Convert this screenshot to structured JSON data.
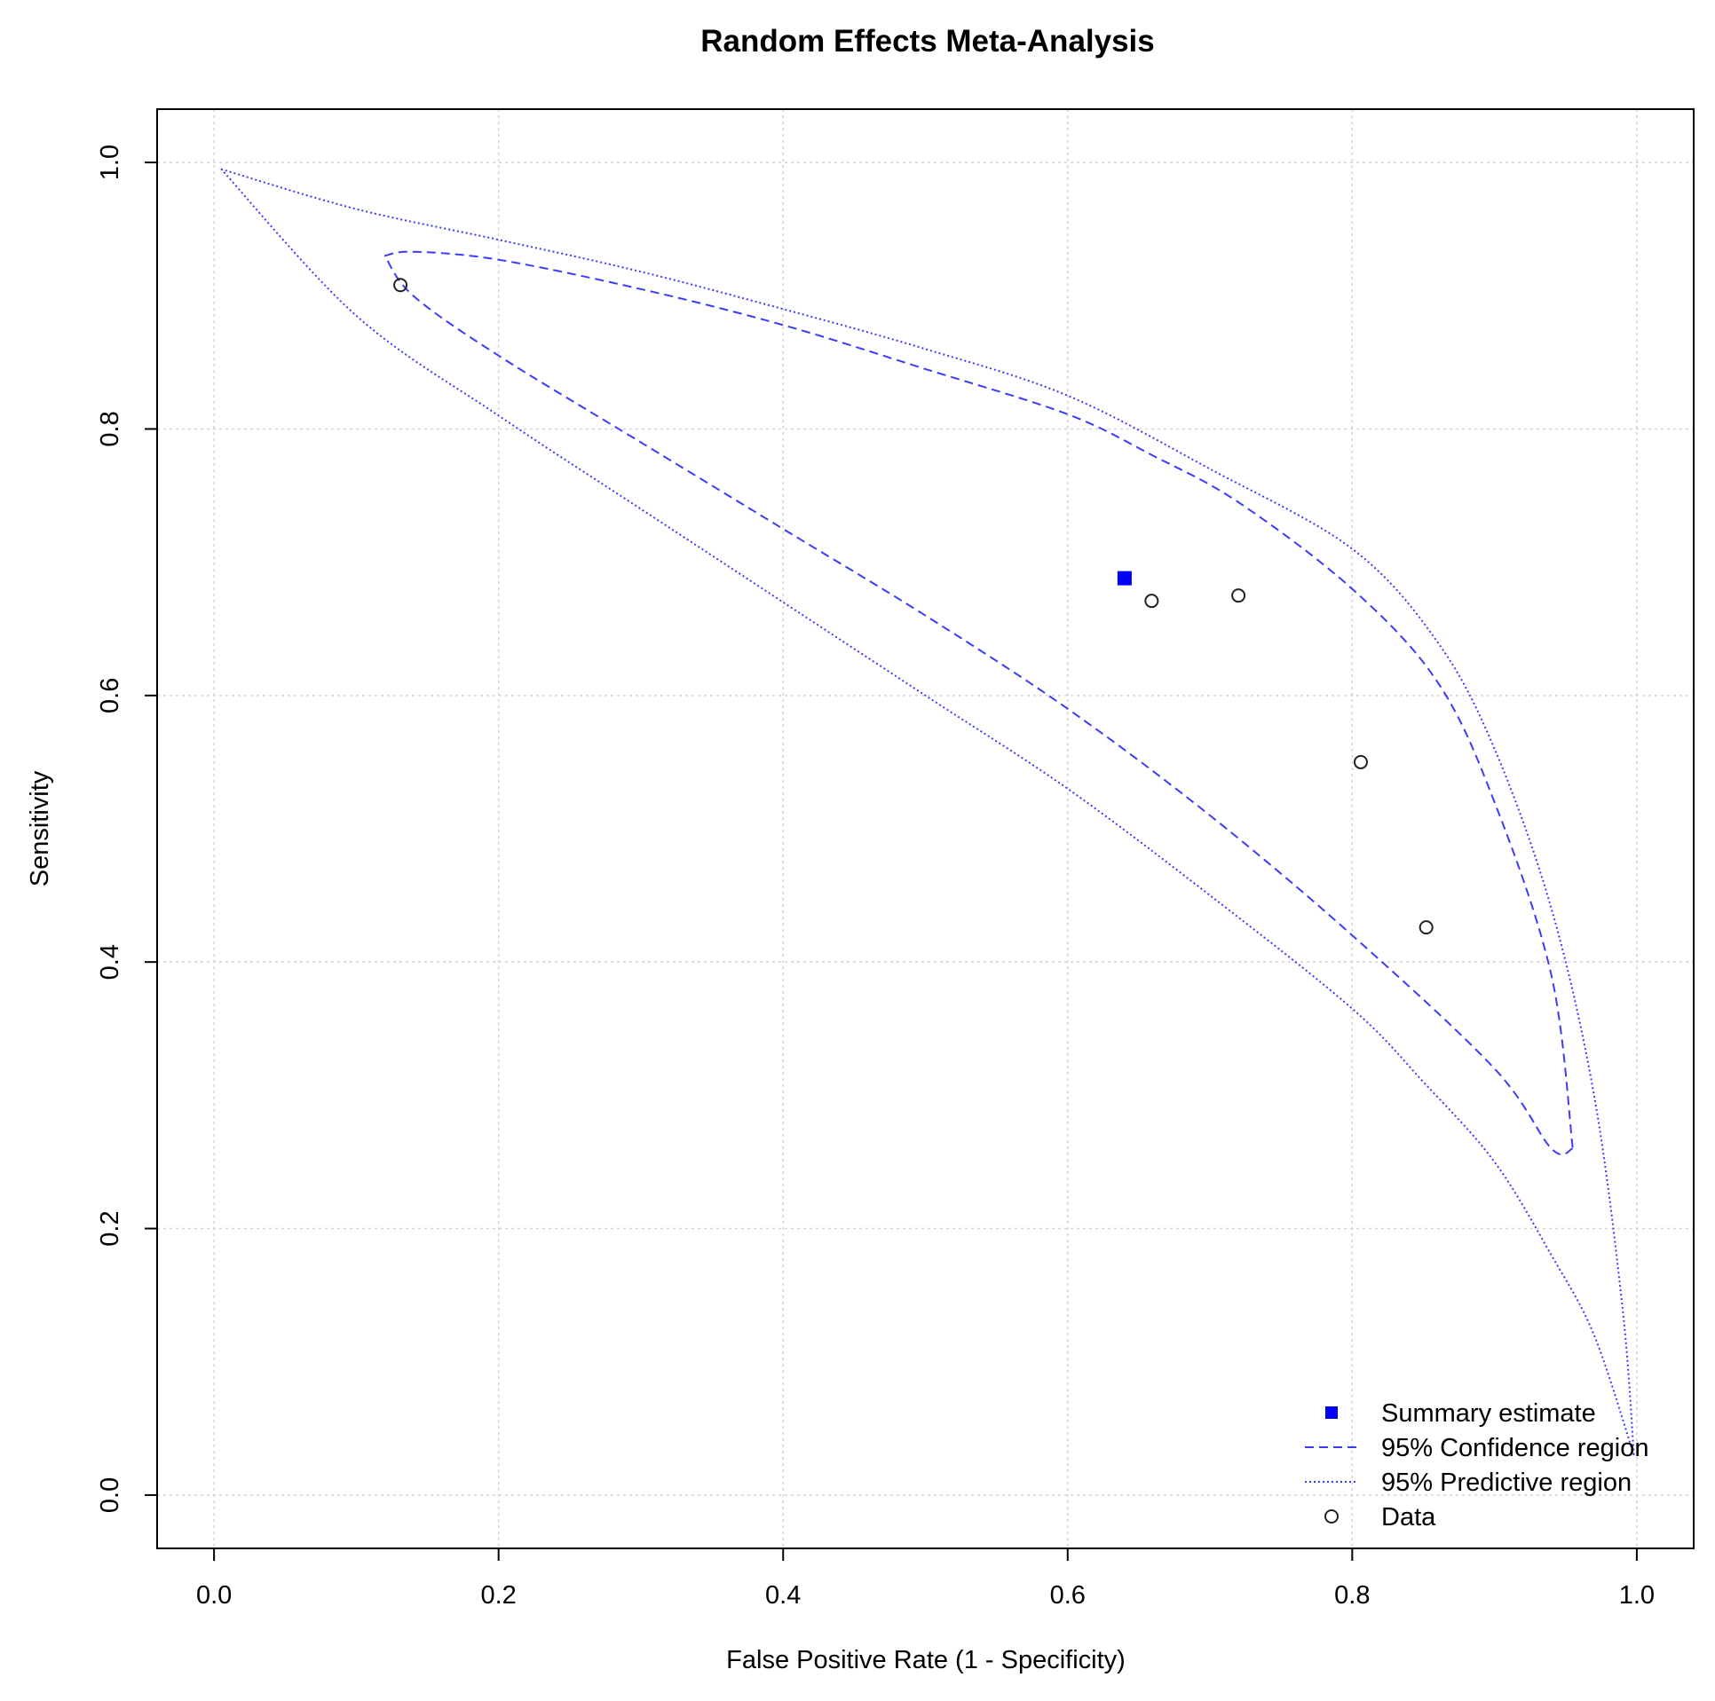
{
  "chart_data": {
    "type": "scatter",
    "title": "Random Effects Meta-Analysis",
    "xlabel": "False Positive Rate (1 - Specificity)",
    "ylabel": "Sensitivity",
    "xlim": [
      -0.04,
      1.04
    ],
    "ylim": [
      -0.04,
      1.04
    ],
    "xticks": [
      "0.0",
      "0.2",
      "0.4",
      "0.6",
      "0.8",
      "1.0"
    ],
    "yticks": [
      "0.0",
      "0.2",
      "0.4",
      "0.6",
      "0.8",
      "1.0"
    ],
    "grid": true,
    "colors": {
      "summary": "#0000ff",
      "regions": "#3b3bff",
      "data": "#222222",
      "grid": "#d3d3d3"
    },
    "summary_estimate": {
      "x": 0.64,
      "y": 0.688
    },
    "data_points": [
      {
        "x": 0.131,
        "y": 0.908
      },
      {
        "x": 0.659,
        "y": 0.671
      },
      {
        "x": 0.72,
        "y": 0.675
      },
      {
        "x": 0.806,
        "y": 0.55
      },
      {
        "x": 0.852,
        "y": 0.426
      }
    ],
    "confidence_region": {
      "upper": [
        [
          0.12,
          0.93
        ],
        [
          0.14,
          0.933
        ],
        [
          0.2,
          0.927
        ],
        [
          0.3,
          0.905
        ],
        [
          0.4,
          0.878
        ],
        [
          0.5,
          0.845
        ],
        [
          0.6,
          0.811
        ],
        [
          0.66,
          0.78
        ],
        [
          0.72,
          0.745
        ],
        [
          0.8,
          0.68
        ],
        [
          0.86,
          0.61
        ],
        [
          0.9,
          0.52
        ],
        [
          0.94,
          0.39
        ],
        [
          0.955,
          0.26
        ]
      ],
      "lower": [
        [
          0.955,
          0.26
        ],
        [
          0.94,
          0.26
        ],
        [
          0.9,
          0.32
        ],
        [
          0.8,
          0.42
        ],
        [
          0.7,
          0.51
        ],
        [
          0.6,
          0.59
        ],
        [
          0.5,
          0.66
        ],
        [
          0.4,
          0.725
        ],
        [
          0.3,
          0.79
        ],
        [
          0.2,
          0.855
        ],
        [
          0.14,
          0.9
        ],
        [
          0.12,
          0.93
        ]
      ]
    },
    "predictive_region": {
      "upper": [
        [
          0.005,
          0.995
        ],
        [
          0.1,
          0.965
        ],
        [
          0.2,
          0.942
        ],
        [
          0.3,
          0.918
        ],
        [
          0.4,
          0.89
        ],
        [
          0.5,
          0.86
        ],
        [
          0.6,
          0.825
        ],
        [
          0.7,
          0.77
        ],
        [
          0.8,
          0.71
        ],
        [
          0.86,
          0.64
        ],
        [
          0.9,
          0.56
        ],
        [
          0.94,
          0.44
        ],
        [
          0.97,
          0.3
        ],
        [
          0.99,
          0.14
        ],
        [
          0.998,
          0.03
        ]
      ],
      "lower": [
        [
          0.998,
          0.03
        ],
        [
          0.97,
          0.12
        ],
        [
          0.94,
          0.18
        ],
        [
          0.9,
          0.25
        ],
        [
          0.85,
          0.31
        ],
        [
          0.8,
          0.365
        ],
        [
          0.7,
          0.45
        ],
        [
          0.6,
          0.53
        ],
        [
          0.5,
          0.6
        ],
        [
          0.4,
          0.67
        ],
        [
          0.3,
          0.74
        ],
        [
          0.2,
          0.81
        ],
        [
          0.1,
          0.885
        ],
        [
          0.005,
          0.995
        ]
      ]
    },
    "legend": {
      "position": "bottom-right",
      "entries": [
        {
          "label": "Summary estimate",
          "symbol": "filled-square"
        },
        {
          "label": "95% Confidence region",
          "symbol": "dashed-line"
        },
        {
          "label": "95% Predictive region",
          "symbol": "dotted-line"
        },
        {
          "label": "Data",
          "symbol": "open-circle"
        }
      ]
    }
  }
}
